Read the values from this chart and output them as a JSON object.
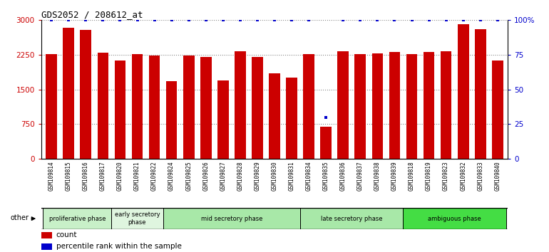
{
  "title": "GDS2052 / 208612_at",
  "samples": [
    "GSM109814",
    "GSM109815",
    "GSM109816",
    "GSM109817",
    "GSM109820",
    "GSM109821",
    "GSM109822",
    "GSM109824",
    "GSM109825",
    "GSM109826",
    "GSM109827",
    "GSM109828",
    "GSM109829",
    "GSM109830",
    "GSM109831",
    "GSM109834",
    "GSM109835",
    "GSM109836",
    "GSM109837",
    "GSM109838",
    "GSM109839",
    "GSM109818",
    "GSM109819",
    "GSM109823",
    "GSM109832",
    "GSM109833",
    "GSM109840"
  ],
  "counts": [
    2270,
    2830,
    2790,
    2300,
    2120,
    2270,
    2240,
    1680,
    2230,
    2200,
    1700,
    2320,
    2200,
    1850,
    1750,
    2260,
    700,
    2320,
    2260,
    2280,
    2310,
    2260,
    2310,
    2330,
    2910,
    2800,
    2130
  ],
  "percentiles": [
    100,
    100,
    100,
    100,
    100,
    100,
    100,
    100,
    100,
    100,
    100,
    100,
    100,
    100,
    100,
    100,
    30,
    100,
    100,
    100,
    100,
    100,
    100,
    100,
    100,
    100,
    100
  ],
  "bar_color": "#cc0000",
  "dot_color": "#0000cc",
  "ylim_left": [
    0,
    3000
  ],
  "ylim_right": [
    0,
    100
  ],
  "yticks_left": [
    0,
    750,
    1500,
    2250,
    3000
  ],
  "ytick_labels_left": [
    "0",
    "750",
    "1500",
    "2250",
    "3000"
  ],
  "yticks_right": [
    0,
    25,
    50,
    75,
    100
  ],
  "ytick_labels_right": [
    "0",
    "25",
    "50",
    "75",
    "100%"
  ],
  "phases": [
    {
      "label": "proliferative phase",
      "start": 0,
      "end": 4,
      "color": "#c8f0c8"
    },
    {
      "label": "early secretory\nphase",
      "start": 4,
      "end": 7,
      "color": "#dff5df"
    },
    {
      "label": "mid secretory phase",
      "start": 7,
      "end": 15,
      "color": "#a8e8a8"
    },
    {
      "label": "late secretory phase",
      "start": 15,
      "end": 21,
      "color": "#a8e8a8"
    },
    {
      "label": "ambiguous phase",
      "start": 21,
      "end": 27,
      "color": "#44dd44"
    }
  ],
  "other_label": "other",
  "legend_count_label": "count",
  "legend_percentile_label": "percentile rank within the sample",
  "grid_color": "#888888",
  "background_color": "#ffffff",
  "xtick_bg_color": "#cccccc"
}
